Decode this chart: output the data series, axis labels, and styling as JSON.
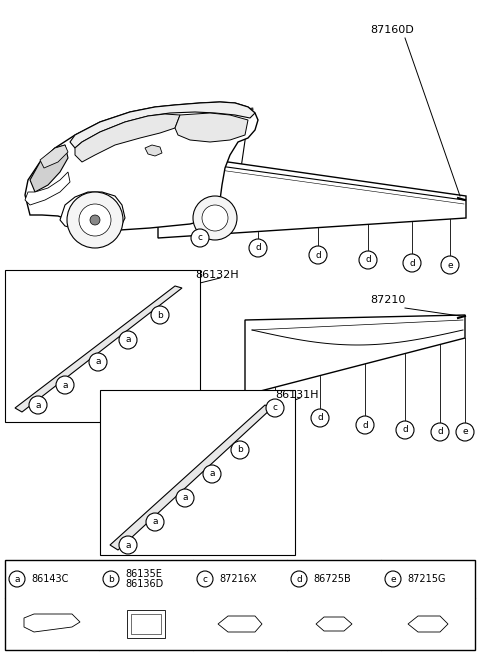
{
  "bg_color": "#ffffff",
  "font_size_label": 8,
  "font_size_code": 7,
  "font_size_circle": 6.5,
  "legend_items": [
    {
      "letter": "a",
      "code": "86143C"
    },
    {
      "letter": "b",
      "code": "86135E\n86136D"
    },
    {
      "letter": "c",
      "code": "87216X"
    },
    {
      "letter": "d",
      "code": "86725B"
    },
    {
      "letter": "e",
      "code": "87215G"
    }
  ],
  "strip1_label": "87160D",
  "strip2_label": "87210",
  "box1_label": "86132H",
  "box2_label": "86131H"
}
